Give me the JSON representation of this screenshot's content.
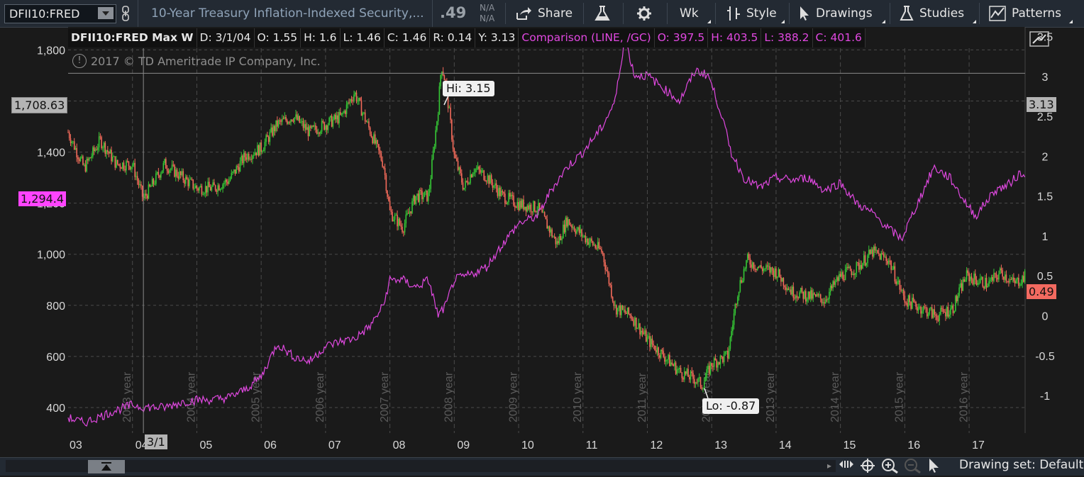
{
  "toolbar": {
    "symbol": "DFII10:FRED",
    "description": "10-Year Treasury Inflation-Indexed Security,...",
    "last_price": ".49",
    "na_top": "N/A",
    "na_bottom": "N/A",
    "share_label": "Share",
    "timeframe_label": "Wk",
    "style_label": "Style",
    "drawings_label": "Drawings",
    "studies_label": "Studies",
    "patterns_label": "Patterns"
  },
  "infobar": {
    "symbol_period": "DFII10:FRED Max W",
    "date": "D: 3/1/04",
    "open": "O: 1.55",
    "high": "H: 1.6",
    "low": "L: 1.46",
    "close": "C: 1.46",
    "range": "R: 0.14",
    "y": "Y: 3.13",
    "comparison": "Comparison (LINE, /GC)",
    "cmp_open": "O: 397.5",
    "cmp_high": "H: 403.5",
    "cmp_low": "L: 388.2",
    "cmp_close": "C: 401.6"
  },
  "copyright": "2017 © TD Ameritrade IP Company, Inc.",
  "badges": {
    "crosshair_left": "1,708.63",
    "crosshair_right": "3.13",
    "comparison_last": "1,294.4",
    "price_last": "0.49",
    "cursor_date": "3/1"
  },
  "annotations": {
    "hi": "Hi: 3.15",
    "lo": "Lo: -0.87"
  },
  "statusbar": {
    "drawing_set": "Drawing set: Default"
  },
  "colors": {
    "up": "#35c735",
    "down": "#f26a5a",
    "comparison": "#e048e0",
    "grid": "#4a4a4a",
    "background": "#1a1a1a"
  },
  "chart_data": {
    "type": "line",
    "left_axis": {
      "ticks": [
        "400",
        "600",
        "800",
        "1,000",
        "1,200",
        "1,400",
        "1,600",
        "1,800"
      ],
      "range": [
        300,
        1890
      ]
    },
    "right_axis": {
      "ticks": [
        "-1",
        "-0.5",
        "0",
        "0.5",
        "1",
        "1.5",
        "2",
        "2.5",
        "3",
        "3.5"
      ],
      "range": [
        -1.47,
        3.62
      ]
    },
    "x_axis": {
      "labels": [
        "03",
        "04",
        "05",
        "06",
        "07",
        "08",
        "09",
        "10",
        "11",
        "12",
        "13",
        "14",
        "15",
        "16",
        "17"
      ],
      "range": [
        2003.0,
        2017.87
      ]
    },
    "year_markers": [
      "2003 year",
      "2004 year",
      "2005 year",
      "2006 year",
      "2007 year",
      "2008 year",
      "2009 year",
      "2010 year",
      "2011 year",
      "2012 year",
      "2013 year",
      "2014 year",
      "2015 year",
      "2016 year"
    ],
    "series": [
      {
        "name": "DFII10:FRED",
        "style": "candlestick",
        "x": [
          2003.0,
          2003.25,
          2003.5,
          2003.75,
          2004.0,
          2004.17,
          2004.5,
          2004.75,
          2005.0,
          2005.25,
          2005.5,
          2005.75,
          2006.0,
          2006.25,
          2006.5,
          2006.75,
          2007.0,
          2007.25,
          2007.45,
          2007.7,
          2007.9,
          2008.0,
          2008.2,
          2008.4,
          2008.6,
          2008.75,
          2008.8,
          2008.87,
          2009.0,
          2009.15,
          2009.3,
          2009.5,
          2009.75,
          2010.0,
          2010.3,
          2010.6,
          2010.75,
          2011.0,
          2011.3,
          2011.5,
          2011.75,
          2012.0,
          2012.25,
          2012.5,
          2012.75,
          2012.85,
          2013.0,
          2013.25,
          2013.4,
          2013.55,
          2013.75,
          2014.0,
          2014.25,
          2014.5,
          2014.75,
          2015.0,
          2015.25,
          2015.5,
          2015.75,
          2016.0,
          2016.25,
          2016.5,
          2016.75,
          2016.95,
          2017.1,
          2017.3,
          2017.5,
          2017.7,
          2017.87
        ],
        "y": [
          2.3,
          1.85,
          2.2,
          1.9,
          1.9,
          1.46,
          1.9,
          1.75,
          1.6,
          1.6,
          1.7,
          2.0,
          2.1,
          2.4,
          2.5,
          2.3,
          2.4,
          2.5,
          2.8,
          2.3,
          1.9,
          1.3,
          1.1,
          1.5,
          1.5,
          2.6,
          3.15,
          2.9,
          2.0,
          1.6,
          1.85,
          1.75,
          1.5,
          1.4,
          1.35,
          0.9,
          1.2,
          1.0,
          0.8,
          0.1,
          0.0,
          -0.3,
          -0.5,
          -0.7,
          -0.8,
          -0.87,
          -0.6,
          -0.5,
          0.3,
          0.7,
          0.6,
          0.55,
          0.3,
          0.25,
          0.2,
          0.5,
          0.6,
          0.8,
          0.7,
          0.2,
          0.1,
          0.0,
          0.1,
          0.5,
          0.45,
          0.4,
          0.55,
          0.4,
          0.49
        ]
      },
      {
        "name": "Comparison (LINE, /GC)",
        "style": "line",
        "x": [
          2003.0,
          2003.25,
          2003.5,
          2003.75,
          2004.0,
          2004.17,
          2004.5,
          2004.75,
          2005.0,
          2005.25,
          2005.5,
          2005.75,
          2006.0,
          2006.25,
          2006.5,
          2006.75,
          2007.0,
          2007.25,
          2007.45,
          2007.7,
          2007.9,
          2008.0,
          2008.2,
          2008.4,
          2008.6,
          2008.75,
          2008.87,
          2009.0,
          2009.25,
          2009.5,
          2009.75,
          2010.0,
          2010.3,
          2010.5,
          2010.75,
          2011.0,
          2011.3,
          2011.5,
          2011.65,
          2011.8,
          2012.0,
          2012.25,
          2012.5,
          2012.75,
          2012.95,
          2013.15,
          2013.3,
          2013.5,
          2013.75,
          2014.0,
          2014.25,
          2014.5,
          2014.75,
          2015.0,
          2015.25,
          2015.5,
          2015.75,
          2015.95,
          2016.2,
          2016.45,
          2016.7,
          2016.95,
          2017.1,
          2017.4,
          2017.6,
          2017.8,
          2017.87
        ],
        "y": [
          360,
          340,
          365,
          390,
          410,
          401.6,
          400,
          420,
          430,
          430,
          440,
          470,
          520,
          650,
          600,
          580,
          640,
          660,
          670,
          720,
          800,
          900,
          900,
          870,
          900,
          760,
          800,
          900,
          920,
          950,
          1040,
          1120,
          1150,
          1250,
          1340,
          1400,
          1500,
          1600,
          1850,
          1700,
          1700,
          1650,
          1600,
          1720,
          1700,
          1550,
          1400,
          1300,
          1260,
          1300,
          1290,
          1300,
          1250,
          1280,
          1200,
          1160,
          1100,
          1060,
          1200,
          1340,
          1300,
          1200,
          1150,
          1250,
          1270,
          1320,
          1294.4
        ]
      }
    ],
    "crosshair": {
      "x": 2004.17,
      "left_value": 1708.63,
      "right_value": 3.13
    },
    "grid": true
  }
}
